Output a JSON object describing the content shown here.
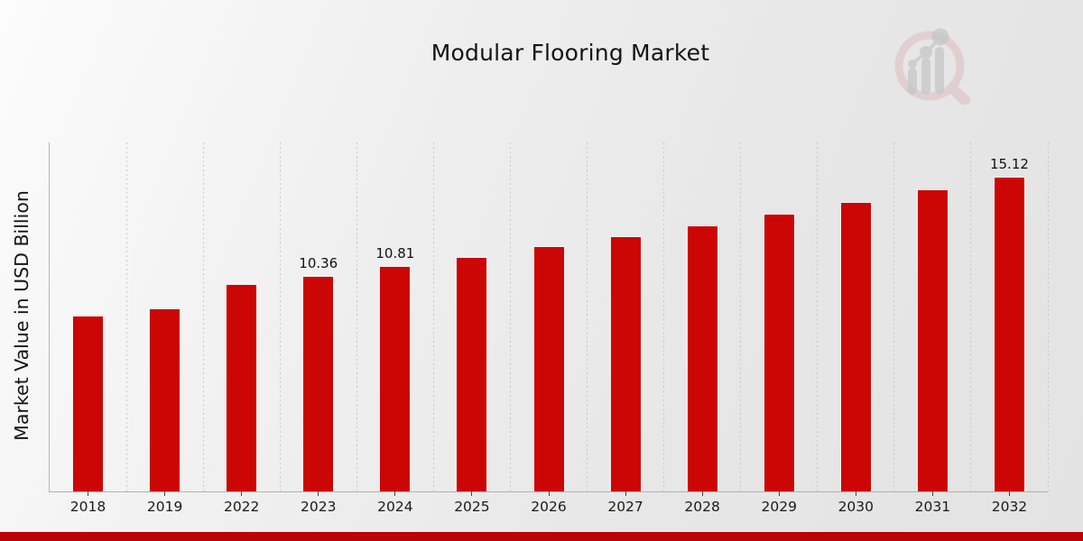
{
  "header": {
    "title": "Modular Flooring Market"
  },
  "axes": {
    "y_label": "Market Value in USD Billion"
  },
  "icons": {
    "watermark": "magnifier-bar-chart-logo"
  },
  "colors": {
    "bar": "#cc0505",
    "footer_band": "#bb0404",
    "background_light": "#fcfcfc",
    "background_dark": "#e3e3e3",
    "gridline": "#c7c7c7",
    "axis_line": "#b0b0b0",
    "text": "#141414",
    "logo_ring": "#ddbdbd",
    "logo_bars": "#c6c6c6"
  },
  "chart_data": {
    "type": "bar",
    "title": "Modular Flooring Market",
    "xlabel": "",
    "ylabel": "Market Value in USD Billion",
    "categories": [
      "2018",
      "2019",
      "2022",
      "2023",
      "2024",
      "2025",
      "2026",
      "2027",
      "2028",
      "2029",
      "2030",
      "2031",
      "2032"
    ],
    "values": [
      8.43,
      8.79,
      9.96,
      10.36,
      10.81,
      11.27,
      11.76,
      12.26,
      12.79,
      13.34,
      13.91,
      14.5,
      15.12
    ],
    "bar_labels": [
      "",
      "",
      "",
      "10.36",
      "10.81",
      "",
      "",
      "",
      "",
      "",
      "",
      "",
      "15.12"
    ],
    "bar_color": "#cc0505",
    "ylim": [
      0,
      16.7
    ],
    "grid": "vertical dashed gridlines between categories",
    "legend_position": "none"
  }
}
